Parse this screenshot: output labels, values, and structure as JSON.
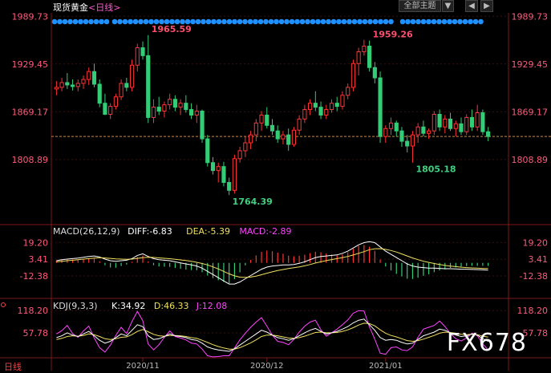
{
  "header": {
    "title": "现货黄金",
    "period": "<日线>",
    "theme_button": "全部主题",
    "theme_arrow": "▼",
    "nav_left": "◀",
    "nav_right": "▶"
  },
  "watermark": "FX678",
  "bottom_period": "日线",
  "chart_data": {
    "type": "candlestick",
    "price_axis": {
      "ticks": [
        1989.73,
        1929.45,
        1869.17,
        1808.89
      ],
      "labels": [
        "1989.73",
        "1929.45",
        "1869.17",
        "1808.89"
      ],
      "range": [
        1745,
        1990
      ]
    },
    "date_labels": [
      {
        "index": 16,
        "label": "2020/11"
      },
      {
        "index": 39,
        "label": "2020/12"
      },
      {
        "index": 61,
        "label": "2021/01"
      }
    ],
    "last_price": 1838,
    "annotations": [
      {
        "index": 17,
        "label": "1965.59",
        "value": 1965.59,
        "position": "above",
        "color": "#ff4d6d"
      },
      {
        "index": 32,
        "label": "1764.39",
        "value": 1764.39,
        "position": "below",
        "color": "#3fd080"
      },
      {
        "index": 58,
        "label": "1959.26",
        "value": 1959.26,
        "position": "above",
        "color": "#ff4d6d"
      },
      {
        "index": 66,
        "label": "1805.18",
        "value": 1805.18,
        "position": "below",
        "color": "#3fd080"
      }
    ],
    "candles": [
      [
        1898,
        1908,
        1890,
        1900
      ],
      [
        1900,
        1912,
        1895,
        1906
      ],
      [
        1906,
        1918,
        1898,
        1903
      ],
      [
        1903,
        1910,
        1896,
        1901
      ],
      [
        1901,
        1910,
        1895,
        1905
      ],
      [
        1905,
        1915,
        1898,
        1910
      ],
      [
        1910,
        1925,
        1903,
        1920
      ],
      [
        1920,
        1930,
        1900,
        1904
      ],
      [
        1904,
        1910,
        1875,
        1880
      ],
      [
        1880,
        1892,
        1865,
        1866
      ],
      [
        1866,
        1880,
        1860,
        1876
      ],
      [
        1876,
        1892,
        1872,
        1888
      ],
      [
        1888,
        1910,
        1884,
        1905
      ],
      [
        1905,
        1912,
        1895,
        1900
      ],
      [
        1900,
        1935,
        1895,
        1928
      ],
      [
        1928,
        1955,
        1920,
        1950
      ],
      [
        1950,
        1958,
        1935,
        1940
      ],
      [
        1940,
        1966,
        1855,
        1862
      ],
      [
        1862,
        1885,
        1855,
        1875
      ],
      [
        1875,
        1888,
        1865,
        1870
      ],
      [
        1870,
        1882,
        1862,
        1878
      ],
      [
        1878,
        1892,
        1872,
        1885
      ],
      [
        1885,
        1890,
        1870,
        1875
      ],
      [
        1875,
        1885,
        1865,
        1880
      ],
      [
        1880,
        1890,
        1868,
        1872
      ],
      [
        1872,
        1880,
        1860,
        1865
      ],
      [
        1865,
        1878,
        1855,
        1870
      ],
      [
        1870,
        1872,
        1830,
        1835
      ],
      [
        1835,
        1840,
        1800,
        1805
      ],
      [
        1805,
        1812,
        1790,
        1795
      ],
      [
        1795,
        1805,
        1780,
        1800
      ],
      [
        1800,
        1806,
        1775,
        1780
      ],
      [
        1780,
        1786,
        1764,
        1770
      ],
      [
        1770,
        1815,
        1766,
        1810
      ],
      [
        1810,
        1825,
        1805,
        1820
      ],
      [
        1820,
        1838,
        1812,
        1830
      ],
      [
        1830,
        1845,
        1822,
        1840
      ],
      [
        1840,
        1860,
        1832,
        1855
      ],
      [
        1855,
        1870,
        1845,
        1865
      ],
      [
        1865,
        1875,
        1848,
        1852
      ],
      [
        1852,
        1860,
        1840,
        1845
      ],
      [
        1845,
        1852,
        1830,
        1835
      ],
      [
        1835,
        1845,
        1828,
        1840
      ],
      [
        1840,
        1848,
        1820,
        1828
      ],
      [
        1828,
        1850,
        1825,
        1846
      ],
      [
        1846,
        1865,
        1840,
        1860
      ],
      [
        1860,
        1878,
        1855,
        1872
      ],
      [
        1872,
        1885,
        1865,
        1880
      ],
      [
        1880,
        1895,
        1870,
        1875
      ],
      [
        1875,
        1882,
        1860,
        1865
      ],
      [
        1865,
        1878,
        1860,
        1872
      ],
      [
        1872,
        1885,
        1868,
        1880
      ],
      [
        1880,
        1888,
        1870,
        1876
      ],
      [
        1876,
        1895,
        1872,
        1890
      ],
      [
        1890,
        1905,
        1885,
        1900
      ],
      [
        1900,
        1935,
        1895,
        1930
      ],
      [
        1930,
        1950,
        1915,
        1945
      ],
      [
        1945,
        1960,
        1940,
        1952
      ],
      [
        1952,
        1959,
        1920,
        1925
      ],
      [
        1925,
        1932,
        1905,
        1912
      ],
      [
        1912,
        1920,
        1830,
        1838
      ],
      [
        1838,
        1852,
        1830,
        1848
      ],
      [
        1848,
        1862,
        1840,
        1855
      ],
      [
        1855,
        1858,
        1838,
        1845
      ],
      [
        1845,
        1850,
        1825,
        1832
      ],
      [
        1832,
        1840,
        1818,
        1826
      ],
      [
        1826,
        1845,
        1805,
        1840
      ],
      [
        1840,
        1855,
        1830,
        1850
      ],
      [
        1850,
        1858,
        1838,
        1842
      ],
      [
        1842,
        1848,
        1835,
        1845
      ],
      [
        1845,
        1870,
        1840,
        1866
      ],
      [
        1866,
        1872,
        1845,
        1850
      ],
      [
        1850,
        1865,
        1842,
        1860
      ],
      [
        1860,
        1868,
        1845,
        1848
      ],
      [
        1848,
        1858,
        1838,
        1854
      ],
      [
        1854,
        1862,
        1840,
        1844
      ],
      [
        1844,
        1866,
        1840,
        1862
      ],
      [
        1862,
        1872,
        1845,
        1850
      ],
      [
        1850,
        1878,
        1845,
        1868
      ],
      [
        1868,
        1872,
        1840,
        1844
      ],
      [
        1844,
        1850,
        1832,
        1838
      ]
    ],
    "macd": {
      "label": "MACD(26,12,9)",
      "diff_label": "DIFF:-6.83",
      "dea_label": "DEA:-5.39",
      "macd_label": "MACD:-2.89",
      "ticks": [
        19.2,
        3.41,
        -12.38
      ],
      "tick_labels": [
        "19.20",
        "3.41",
        "-12.38"
      ],
      "range": [
        -32,
        30
      ],
      "diff": [
        2,
        3,
        3.5,
        4,
        4.5,
        5.2,
        6,
        6.5,
        5.5,
        3.5,
        2,
        1.5,
        2,
        2.5,
        4,
        7,
        8.5,
        6,
        4,
        3,
        2.5,
        2,
        1,
        0,
        -1,
        -2,
        -3,
        -5,
        -8,
        -11,
        -14,
        -17,
        -20,
        -20,
        -18,
        -15,
        -12,
        -9,
        -6,
        -4,
        -3,
        -2.5,
        -2,
        -2,
        -1.5,
        -0.5,
        1,
        3,
        5,
        6,
        6.5,
        7,
        7.5,
        9,
        11,
        14,
        17,
        19,
        20,
        19,
        15,
        11,
        8,
        5,
        2,
        -1,
        -3,
        -4,
        -4.5,
        -5,
        -5,
        -5.2,
        -5.5,
        -5.5,
        -5.8,
        -6,
        -6,
        -6.2,
        -6.4,
        -6.6,
        -6.83
      ],
      "dea": [
        1,
        1.5,
        2,
        2.5,
        3,
        3.5,
        4,
        4.5,
        4.8,
        4.6,
        4.2,
        3.8,
        3.5,
        3.3,
        3.5,
        4.2,
        5,
        5.3,
        5.1,
        4.7,
        4.3,
        3.9,
        3.4,
        2.8,
        2.2,
        1.4,
        0.5,
        -0.6,
        -2,
        -3.8,
        -5.8,
        -8,
        -10.4,
        -12.3,
        -13.5,
        -13.8,
        -13.4,
        -12.5,
        -11.2,
        -9.8,
        -8.5,
        -7.3,
        -6.3,
        -5.4,
        -4.6,
        -3.8,
        -2.8,
        -1.6,
        -0.2,
        1,
        2.1,
        3.1,
        4,
        5,
        6,
        7.4,
        9,
        10.6,
        12.4,
        13.3,
        13.4,
        12.7,
        11.6,
        10.2,
        8.4,
        6.5,
        4.6,
        3,
        1.6,
        0.4,
        -0.6,
        -1.6,
        -2.4,
        -3.1,
        -3.6,
        -4.1,
        -4.5,
        -4.8,
        -5,
        -5.2,
        -5.39
      ]
    },
    "kdj": {
      "label": "KDJ(9,3,3)",
      "k_label": "K:34.92",
      "d_label": "D:46.33",
      "j_label": "J:12.08",
      "ticks": [
        118.2,
        57.78
      ],
      "tick_labels": [
        "118.20",
        "57.78"
      ],
      "range": [
        -5,
        125
      ],
      "k": [
        45,
        50,
        58,
        52,
        48,
        55,
        62,
        50,
        38,
        30,
        35,
        45,
        55,
        50,
        65,
        80,
        75,
        50,
        40,
        42,
        48,
        55,
        50,
        48,
        45,
        40,
        38,
        30,
        20,
        15,
        12,
        10,
        8,
        15,
        25,
        35,
        45,
        55,
        65,
        60,
        52,
        45,
        42,
        38,
        42,
        50,
        58,
        65,
        70,
        62,
        55,
        58,
        62,
        68,
        75,
        85,
        92,
        95,
        80,
        65,
        45,
        38,
        40,
        38,
        32,
        28,
        30,
        40,
        50,
        55,
        60,
        68,
        65,
        58,
        52,
        48,
        50,
        55,
        52,
        42,
        34.92
      ],
      "d": [
        40,
        43,
        48,
        50,
        49,
        51,
        55,
        53,
        48,
        42,
        40,
        42,
        46,
        47,
        53,
        62,
        67,
        61,
        54,
        50,
        49,
        51,
        51,
        50,
        48,
        45,
        43,
        38,
        32,
        26,
        21,
        17,
        14,
        14,
        18,
        24,
        31,
        39,
        48,
        52,
        52,
        50,
        47,
        44,
        43,
        45,
        49,
        54,
        59,
        60,
        58,
        58,
        59,
        62,
        66,
        72,
        79,
        84,
        83,
        77,
        66,
        57,
        51,
        47,
        42,
        37,
        35,
        37,
        41,
        46,
        51,
        57,
        60,
        59,
        57,
        54,
        53,
        54,
        53,
        49,
        46.33
      ],
      "j": [
        55,
        64,
        78,
        56,
        46,
        63,
        76,
        44,
        18,
        6,
        25,
        51,
        73,
        56,
        89,
        116,
        91,
        28,
        12,
        26,
        46,
        63,
        48,
        44,
        39,
        30,
        28,
        14,
        -4,
        -7,
        -6,
        -4,
        -4,
        17,
        39,
        57,
        73,
        87,
        99,
        76,
        52,
        35,
        32,
        26,
        40,
        60,
        76,
        87,
        92,
        66,
        49,
        58,
        68,
        80,
        93,
        111,
        118,
        117,
        74,
        41,
        3,
        0,
        18,
        20,
        12,
        10,
        20,
        46,
        68,
        73,
        78,
        90,
        75,
        56,
        42,
        36,
        44,
        57,
        50,
        28,
        12.08
      ]
    }
  },
  "colors": {
    "up": "#ff3333",
    "down": "#33cc77",
    "grid": "#3a1010",
    "axis_text": "#ff5a7a",
    "diff": "#ffffff",
    "dea": "#f0e060",
    "macd": "#ff44ff",
    "k": "#ffffff",
    "d": "#f0e060",
    "j": "#ff44ff",
    "pill": "#1e90ff"
  }
}
